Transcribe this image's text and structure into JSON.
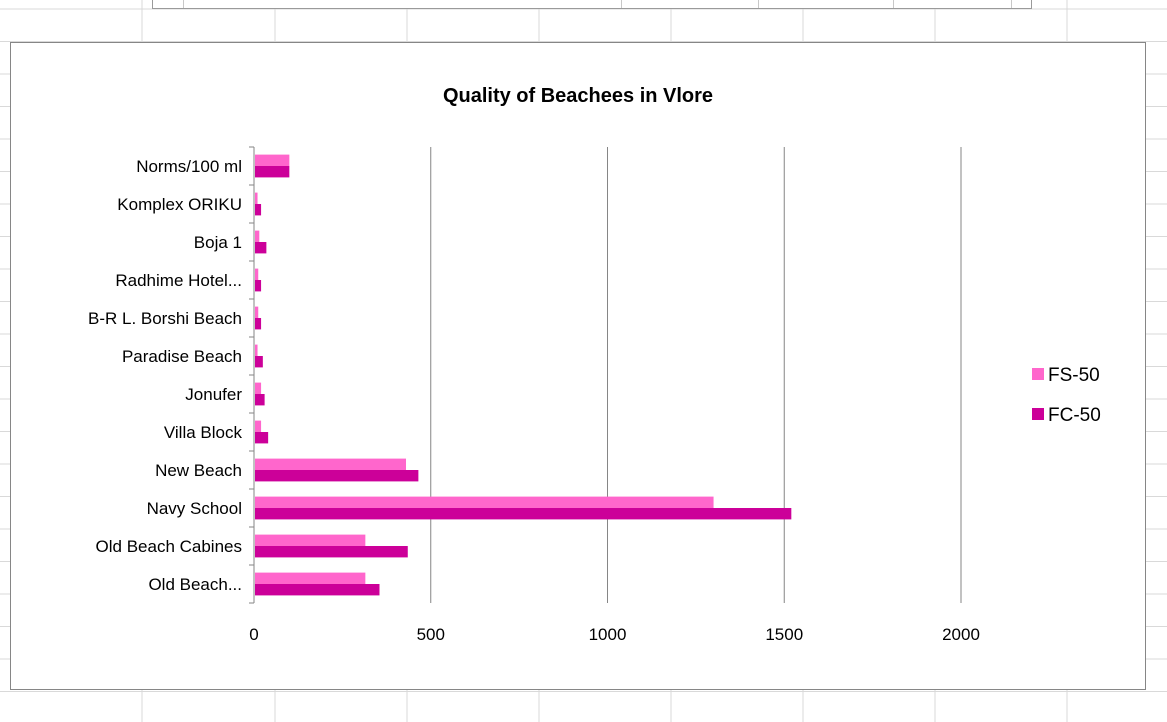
{
  "colors": {
    "fs50": "#ff66cc",
    "fc50": "#cc0099",
    "gridline": "#868686",
    "axis": "#868686",
    "sheet_grid": "#d9d9d9"
  },
  "chart_data": {
    "type": "bar",
    "orientation": "horizontal",
    "title": "Quality of Beachees in Vlore",
    "categories": [
      "Norms/100 ml",
      "Komplex ORIKU",
      "Boja 1",
      "Radhime Hotel...",
      "B-R L. Borshi Beach",
      "Paradise  Beach",
      "Jonufer",
      "Villa Block",
      "New Beach",
      "Navy School",
      "Old Beach Cabines",
      "Old Beach..."
    ],
    "series": [
      {
        "name": "FS-50",
        "color": "#ff66cc",
        "values": [
          100,
          10,
          15,
          12,
          12,
          10,
          20,
          20,
          430,
          1300,
          315,
          315
        ]
      },
      {
        "name": "FC-50",
        "color": "#cc0099",
        "values": [
          100,
          20,
          35,
          20,
          20,
          25,
          30,
          40,
          465,
          1520,
          435,
          355
        ]
      }
    ],
    "xlim": [
      0,
      2000
    ],
    "xticks": [
      "0",
      "500",
      "1000",
      "1500",
      "2000"
    ],
    "grid": true,
    "legend": "right"
  }
}
